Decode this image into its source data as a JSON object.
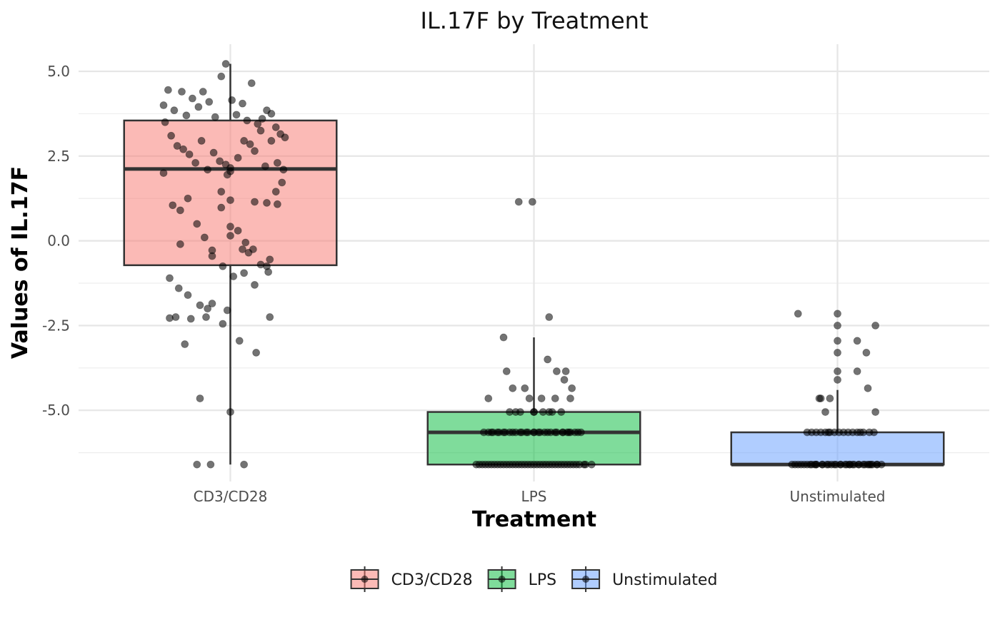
{
  "chart_data": {
    "type": "boxplot",
    "title": "IL.17F by Treatment",
    "xlabel": "Treatment",
    "ylabel": "Values of IL.17F",
    "categories": [
      "CD3/CD28",
      "LPS",
      "Unstimulated"
    ],
    "ylim": [
      -7.1,
      5.8
    ],
    "yticks": [
      5.0,
      2.5,
      0.0,
      -2.5,
      -5.0
    ],
    "ytick_labels": [
      "5.0",
      "2.5",
      "0.0",
      "-2.5",
      "-5.0"
    ],
    "grid": true,
    "legend_position": "bottom",
    "legend_entries": [
      "CD3/CD28",
      "LPS",
      "Unstimulated"
    ],
    "colors": {
      "CD3/CD28": "#f8766d",
      "LPS": "#00ba38",
      "Unstimulated": "#619cff",
      "point": "#000000",
      "box_stroke": "#333333"
    },
    "boxes": [
      {
        "name": "CD3/CD28",
        "lower_whisker": -6.6,
        "q1": -0.72,
        "median": 2.12,
        "q3": 3.55,
        "upper_whisker": 5.22
      },
      {
        "name": "LPS",
        "lower_whisker": -6.6,
        "q1": -6.6,
        "median": -5.65,
        "q3": -5.05,
        "upper_whisker": -2.85
      },
      {
        "name": "Unstimulated",
        "lower_whisker": -6.6,
        "q1": -6.6,
        "median": -6.6,
        "q3": -5.65,
        "upper_whisker": -4.4
      }
    ],
    "points": [
      {
        "group": "CD3/CD28",
        "dx": [
          -0.44,
          -0.41,
          -0.37,
          -0.32,
          -0.29,
          -0.25,
          -0.21,
          -0.18,
          -0.14,
          -0.1,
          -0.06,
          -0.03,
          0.01,
          0.04,
          0.08,
          0.11,
          0.14,
          0.18,
          0.21,
          0.24,
          0.27,
          0.3,
          0.33,
          0.36,
          -0.43,
          -0.39,
          -0.35,
          -0.31,
          -0.27,
          -0.23,
          -0.19,
          -0.15,
          -0.11,
          -0.07,
          -0.03,
          0.0,
          0.05,
          0.09,
          0.13,
          0.16,
          0.2,
          0.23,
          0.27,
          0.31,
          0.35,
          -0.44,
          -0.38,
          -0.33,
          -0.28,
          -0.22,
          -0.17,
          -0.12,
          -0.06,
          0.0,
          0.05,
          0.1,
          0.15,
          0.2,
          0.25,
          0.3,
          0.34,
          -0.4,
          -0.34,
          -0.28,
          -0.2,
          -0.12,
          -0.05,
          0.02,
          0.09,
          0.16,
          0.24,
          0.31,
          -0.36,
          -0.26,
          -0.15,
          -0.05,
          0.06,
          0.17,
          0.26,
          -0.3,
          -0.16,
          -0.02,
          0.12,
          0.26,
          -0.33,
          -0.2,
          0.0,
          0.16,
          -0.4,
          -0.13,
          0.09,
          -0.22,
          0.0,
          0.08,
          -0.12,
          -0.02,
          0.24,
          -0.06,
          0.0
        ],
        "y": [
          4.0,
          4.45,
          3.85,
          4.4,
          3.7,
          4.2,
          3.95,
          4.4,
          4.1,
          3.65,
          4.85,
          5.22,
          4.15,
          3.72,
          4.05,
          3.55,
          4.65,
          3.45,
          3.6,
          3.85,
          3.75,
          3.35,
          3.15,
          3.05,
          3.5,
          3.1,
          2.8,
          2.7,
          2.55,
          2.3,
          2.95,
          2.1,
          2.6,
          2.35,
          2.25,
          2.05,
          2.45,
          2.95,
          2.85,
          2.65,
          3.25,
          2.2,
          2.95,
          2.3,
          2.1,
          2.0,
          1.05,
          0.9,
          1.25,
          0.5,
          0.1,
          -0.45,
          0.98,
          0.42,
          0.3,
          -0.05,
          -0.25,
          -0.7,
          -0.92,
          1.45,
          1.72,
          -1.1,
          -1.4,
          -1.6,
          -1.9,
          -1.85,
          -0.75,
          -1.05,
          -0.95,
          1.15,
          1.12,
          1.08,
          -2.25,
          -2.3,
          -2.0,
          -2.45,
          -2.95,
          -3.3,
          -2.25,
          -3.05,
          -2.25,
          -2.05,
          -0.35,
          -0.55,
          -0.1,
          -4.65,
          -5.05,
          -1.3,
          -2.28,
          -6.6,
          -6.6,
          -6.6,
          2.15,
          -0.25,
          -0.28,
          1.95,
          -0.75,
          1.45,
          1.2,
          0.15
        ],
        "alpha": 0.55
      },
      {
        "group": "LPS",
        "dx": [
          -0.1,
          -0.01,
          -0.2,
          -0.18,
          0.1,
          0.25,
          0.2,
          0.15,
          0.09,
          -0.14,
          -0.06,
          -0.03,
          0.05,
          0.14,
          0.21,
          0.24,
          -0.3,
          -0.16,
          -0.09,
          0.0,
          0.06,
          0.12,
          0.18,
          -0.27,
          -0.23,
          -0.19,
          -0.14,
          -0.09,
          -0.05,
          0.0,
          0.04,
          0.09,
          0.14,
          0.19,
          0.24,
          0.29,
          -0.33,
          -0.28,
          -0.24,
          -0.2,
          -0.16,
          -0.12,
          -0.08,
          -0.04,
          0.0,
          0.03,
          0.07,
          0.11,
          0.15,
          0.19,
          0.23,
          0.27,
          0.31,
          -0.38,
          -0.34,
          -0.3,
          -0.26,
          -0.22,
          -0.18,
          -0.14,
          -0.1,
          -0.06,
          -0.02,
          0.02,
          0.06,
          0.1,
          0.14,
          0.18,
          0.22,
          0.26,
          0.3,
          0.34,
          -0.36,
          -0.32,
          -0.28,
          -0.24,
          -0.2,
          -0.16,
          -0.12,
          -0.08,
          -0.04,
          0.0,
          0.04,
          0.08,
          0.12,
          0.16,
          0.2,
          0.24,
          0.28,
          0.33,
          0.38,
          -0.12,
          0.0,
          0.1,
          -0.3,
          0.22
        ],
        "y": [
          1.15,
          1.15,
          -2.85,
          -3.85,
          -2.25,
          -4.35,
          -4.1,
          -3.85,
          -3.5,
          -4.35,
          -4.35,
          -4.65,
          -4.65,
          -4.65,
          -3.85,
          -4.65,
          -4.65,
          -5.05,
          -5.05,
          -5.05,
          -5.05,
          -5.05,
          -5.05,
          -5.65,
          -5.65,
          -5.65,
          -5.65,
          -5.65,
          -5.65,
          -5.65,
          -5.65,
          -5.65,
          -5.65,
          -5.65,
          -5.65,
          -5.65,
          -5.65,
          -5.65,
          -5.65,
          -5.65,
          -5.65,
          -5.65,
          -5.65,
          -5.65,
          -5.65,
          -5.65,
          -5.65,
          -5.65,
          -5.65,
          -5.65,
          -5.65,
          -5.65,
          -5.65,
          -6.6,
          -6.6,
          -6.6,
          -6.6,
          -6.6,
          -6.6,
          -6.6,
          -6.6,
          -6.6,
          -6.6,
          -6.6,
          -6.6,
          -6.6,
          -6.6,
          -6.6,
          -6.6,
          -6.6,
          -6.6,
          -6.6,
          -6.6,
          -6.6,
          -6.6,
          -6.6,
          -6.6,
          -6.6,
          -6.6,
          -6.6,
          -6.6,
          -6.6,
          -6.6,
          -6.6,
          -6.6,
          -6.6,
          -6.6,
          -6.6,
          -6.6,
          -6.6,
          -6.6,
          -5.05,
          -5.05,
          -5.05,
          -5.65,
          -5.65
        ],
        "alpha": 0.55
      },
      {
        "group": "Unstimulated",
        "dx": [
          -0.26,
          0.0,
          0.0,
          0.25,
          0.0,
          0.0,
          0.13,
          0.0,
          0.19,
          0.13,
          0.0,
          0.2,
          -0.11,
          -0.05,
          -0.08,
          0.25,
          -0.12,
          -0.2,
          -0.17,
          -0.14,
          -0.11,
          -0.08,
          -0.05,
          -0.02,
          0.01,
          0.04,
          0.07,
          0.1,
          0.13,
          0.17,
          0.21,
          0.24,
          -0.28,
          -0.24,
          -0.2,
          -0.17,
          -0.14,
          -0.1,
          -0.07,
          -0.04,
          -0.01,
          0.02,
          0.05,
          0.08,
          0.11,
          0.14,
          0.17,
          0.2,
          0.23,
          0.26,
          0.29,
          -0.3,
          -0.26,
          -0.22,
          -0.18,
          -0.14,
          -0.1,
          -0.06,
          -0.02,
          0.02,
          0.06,
          0.1,
          0.14,
          0.18,
          0.22,
          0.26,
          -0.06,
          0.15,
          -0.15,
          0.08,
          0.21
        ],
        "y": [
          -2.15,
          -2.15,
          -2.5,
          -2.5,
          -2.95,
          -3.3,
          -2.95,
          -3.85,
          -3.3,
          -3.85,
          -4.1,
          -4.35,
          -4.65,
          -4.65,
          -5.05,
          -5.05,
          -4.65,
          -5.65,
          -5.65,
          -5.65,
          -5.65,
          -5.65,
          -5.65,
          -5.65,
          -5.65,
          -5.65,
          -5.65,
          -5.65,
          -5.65,
          -5.65,
          -5.65,
          -5.65,
          -6.6,
          -6.6,
          -6.6,
          -6.6,
          -6.6,
          -6.6,
          -6.6,
          -6.6,
          -6.6,
          -6.6,
          -6.6,
          -6.6,
          -6.6,
          -6.6,
          -6.6,
          -6.6,
          -6.6,
          -6.6,
          -6.6,
          -6.6,
          -6.6,
          -6.6,
          -6.6,
          -6.6,
          -6.6,
          -6.6,
          -6.6,
          -6.6,
          -6.6,
          -6.6,
          -6.6,
          -6.6,
          -6.6,
          -6.6,
          -5.65,
          -5.65,
          -6.6,
          -6.6,
          -6.6
        ],
        "alpha": 0.55
      }
    ]
  }
}
